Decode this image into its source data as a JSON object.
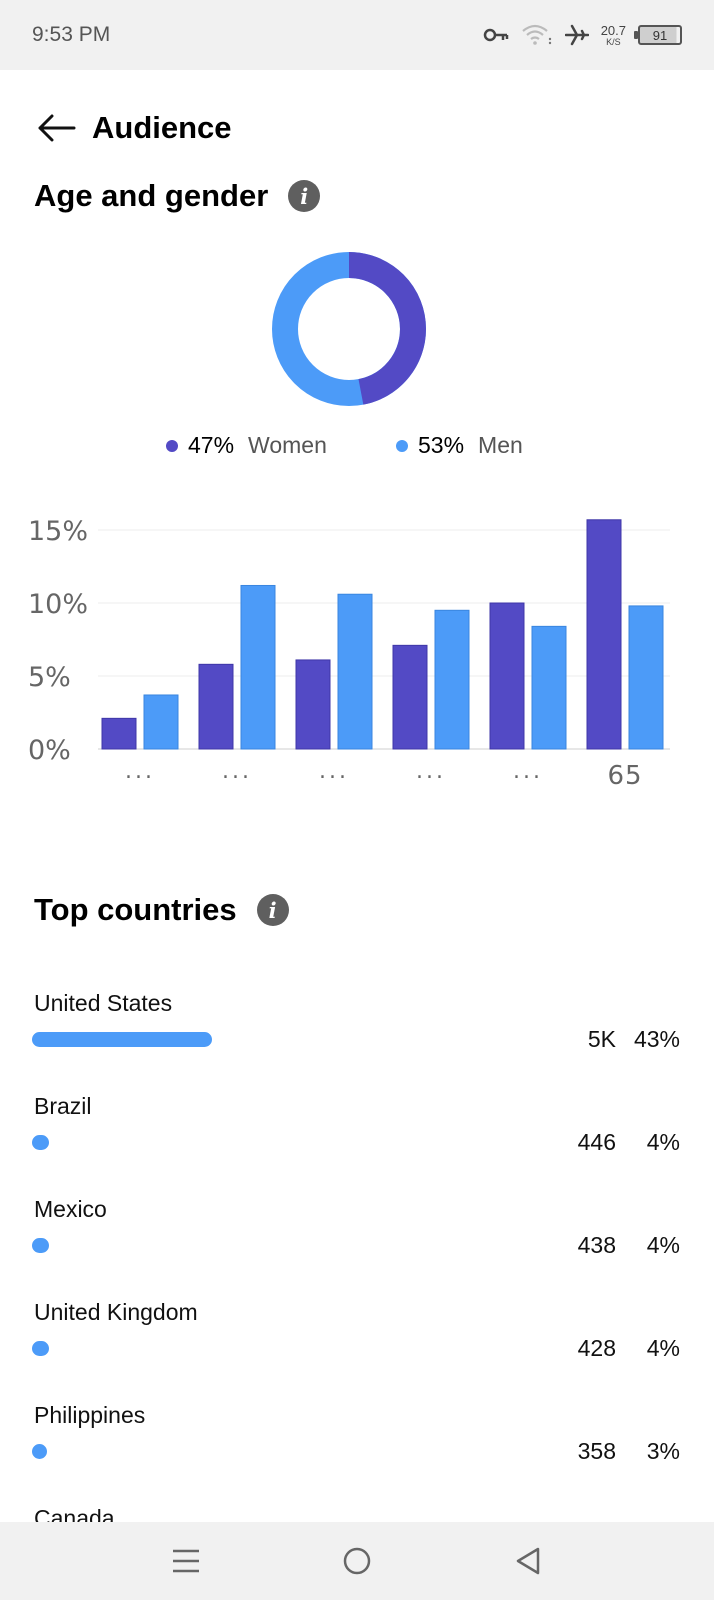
{
  "status_bar": {
    "time": "9:53 PM",
    "net_speed_value": "20.7",
    "net_speed_unit": "K/S",
    "battery": "91",
    "icons": [
      "vpn-key-icon",
      "wifi-icon",
      "airplane-icon"
    ]
  },
  "header": {
    "title": "Audience",
    "back_icon": "arrow-left-icon"
  },
  "age_gender": {
    "title": "Age and gender",
    "info_icon": "i",
    "women": {
      "pct": "47%",
      "label": "Women",
      "color": "#534ac5",
      "value": 47
    },
    "men": {
      "pct": "53%",
      "label": "Men",
      "color": "#4c9bf8",
      "value": 53
    }
  },
  "chart_data": {
    "type": "bar",
    "categories": [
      "...",
      "...",
      "...",
      "...",
      "...",
      "65"
    ],
    "series": [
      {
        "values": [
          2.1,
          5.8,
          6.1,
          7.1,
          10.0,
          15.7
        ],
        "color": "#534ac5"
      },
      {
        "values": [
          3.7,
          11.2,
          10.6,
          9.5,
          8.4,
          9.8
        ],
        "color": "#4c9bf8"
      }
    ],
    "yticks": [
      "0%",
      "5%",
      "10%",
      "15%"
    ],
    "ylim": [
      0,
      16
    ],
    "grid": true
  },
  "top_countries": {
    "title": "Top countries",
    "info_icon": "i",
    "items": [
      {
        "name": "United States",
        "count": "5K",
        "pct": "43%",
        "share": 43
      },
      {
        "name": "Brazil",
        "count": "446",
        "pct": "4%",
        "share": 4
      },
      {
        "name": "Mexico",
        "count": "438",
        "pct": "4%",
        "share": 4
      },
      {
        "name": "United Kingdom",
        "count": "428",
        "pct": "4%",
        "share": 4
      },
      {
        "name": "Philippines",
        "count": "358",
        "pct": "3%",
        "share": 3
      },
      {
        "name": "Canada",
        "count": "",
        "pct": "",
        "share": 0
      }
    ]
  },
  "nav": {
    "buttons": [
      "menu-icon",
      "home-icon",
      "back-icon"
    ]
  }
}
